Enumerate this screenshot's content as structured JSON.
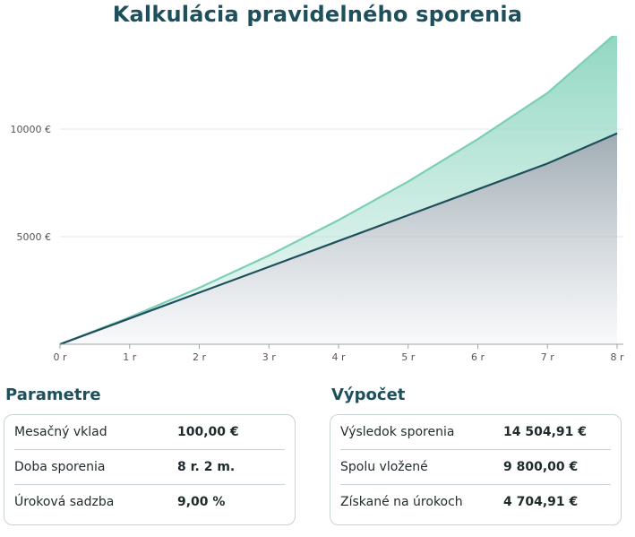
{
  "page": {
    "title": "Kalkulácia pravidelného sporenia"
  },
  "chart_data": {
    "type": "area",
    "x": [
      0,
      1,
      2,
      3,
      4,
      5,
      6,
      7,
      8
    ],
    "x_tick_labels": [
      "0 r",
      "1 r",
      "2 r",
      "3 r",
      "4 r",
      "5 r",
      "6 r",
      "7 r",
      "8 r"
    ],
    "y_tick_labels": [
      "10000 €",
      "5000 €"
    ],
    "y_ticks": [
      10000,
      5000
    ],
    "ylim": [
      0,
      14000
    ],
    "xlim": [
      0,
      8
    ],
    "grid": true,
    "series": [
      {
        "values": [
          0,
          1254,
          2625,
          4127,
          5770,
          7567,
          9532,
          11681,
          14500
        ],
        "color": "#7ccfb6"
      },
      {
        "values": [
          0,
          1200,
          2400,
          3600,
          4800,
          6000,
          7200,
          8400,
          9800
        ],
        "color": "#1e4f5c"
      }
    ]
  },
  "parameters": {
    "title": "Parametre",
    "rows": [
      {
        "label": "Mesačný vklad",
        "value": "100,00 €"
      },
      {
        "label": "Doba sporenia",
        "value": "8 r. 2 m."
      },
      {
        "label": "Úroková sadzba",
        "value": "9,00 %"
      }
    ]
  },
  "calculation": {
    "title": "Výpočet",
    "rows": [
      {
        "label": "Výsledok sporenia",
        "value": "14 504,91 €"
      },
      {
        "label": "Spolu vložené",
        "value": "9 800,00 €"
      },
      {
        "label": "Získané na úrokoch",
        "value": "4 704,91 €"
      }
    ]
  }
}
